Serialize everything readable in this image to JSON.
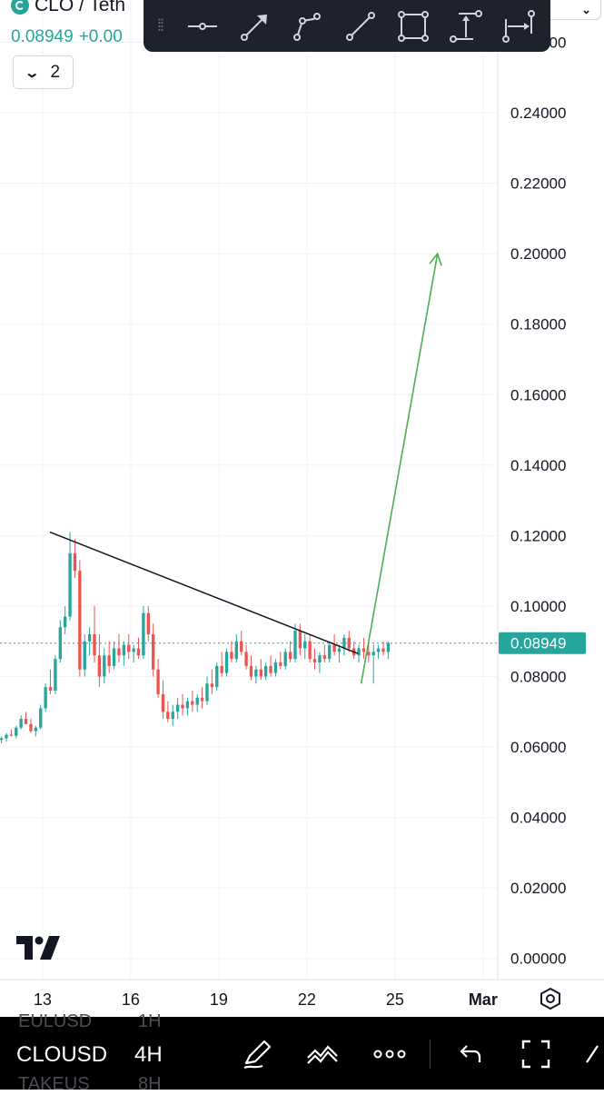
{
  "header": {
    "symbol_title": "CLO / Teth",
    "last_price": "0.08949",
    "change": "+0.00"
  },
  "indicator_toggle": {
    "count": "2"
  },
  "drawing_toolbar": {
    "tools": [
      "horizontal-ray-icon",
      "arrow-icon",
      "path-icon",
      "trend-line-icon",
      "rectangle-icon",
      "price-range-icon",
      "date-range-icon"
    ]
  },
  "bottom_bar": {
    "ghost_above": "EULUSD",
    "ghost_above_interval": "1H",
    "symbol": "CLOUSD",
    "interval": "4H",
    "ghost_below": "TAKEUS",
    "ghost_below_interval": "8H"
  },
  "colors": {
    "up": "#26a69a",
    "down": "#ef5350",
    "trend_line": "#131722",
    "projection_arrow": "#4caf50",
    "grid": "#f0f3fa",
    "toolbar_bg": "#1e222d"
  },
  "chart_data": {
    "type": "candlestick",
    "symbol": "CLO / Teth",
    "y_axis": {
      "ticks": [
        "0.26000",
        "0.24000",
        "0.22000",
        "0.20000",
        "0.18000",
        "0.16000",
        "0.14000",
        "0.12000",
        "0.10000",
        "0.08000",
        "0.06000",
        "0.04000",
        "0.02000",
        "0.00000"
      ],
      "range": [
        -0.006,
        0.272
      ]
    },
    "x_axis": {
      "ticks": [
        "13",
        "16",
        "19",
        "22",
        "25",
        "Mar"
      ],
      "tick_days": [
        13,
        16,
        19,
        22,
        25,
        28
      ],
      "range": [
        11.55,
        28.5
      ]
    },
    "current_price": 0.08949,
    "current_price_label": "0.08949",
    "candles_start_day": 11.6,
    "candle_step_days": 0.1667,
    "candles": [
      [
        0.062,
        0.063,
        0.061,
        0.0625
      ],
      [
        0.0625,
        0.064,
        0.0615,
        0.0635
      ],
      [
        0.0635,
        0.065,
        0.063,
        0.0632
      ],
      [
        0.0632,
        0.066,
        0.0625,
        0.0655
      ],
      [
        0.0655,
        0.069,
        0.065,
        0.068
      ],
      [
        0.068,
        0.07,
        0.0665,
        0.0665
      ],
      [
        0.0665,
        0.068,
        0.064,
        0.0645
      ],
      [
        0.0645,
        0.066,
        0.063,
        0.0655
      ],
      [
        0.0655,
        0.072,
        0.065,
        0.071
      ],
      [
        0.071,
        0.078,
        0.07,
        0.077
      ],
      [
        0.077,
        0.082,
        0.075,
        0.076
      ],
      [
        0.076,
        0.086,
        0.075,
        0.085
      ],
      [
        0.085,
        0.096,
        0.084,
        0.094
      ],
      [
        0.094,
        0.1,
        0.092,
        0.097
      ],
      [
        0.097,
        0.121,
        0.096,
        0.115
      ],
      [
        0.115,
        0.119,
        0.108,
        0.11
      ],
      [
        0.11,
        0.113,
        0.08,
        0.082
      ],
      [
        0.082,
        0.092,
        0.08,
        0.09
      ],
      [
        0.09,
        0.094,
        0.086,
        0.092
      ],
      [
        0.092,
        0.1,
        0.084,
        0.086
      ],
      [
        0.086,
        0.092,
        0.077,
        0.08
      ],
      [
        0.08,
        0.088,
        0.078,
        0.086
      ],
      [
        0.086,
        0.09,
        0.081,
        0.083
      ],
      [
        0.083,
        0.09,
        0.082,
        0.088
      ],
      [
        0.088,
        0.092,
        0.084,
        0.086
      ],
      [
        0.086,
        0.09,
        0.083,
        0.089
      ],
      [
        0.089,
        0.092,
        0.085,
        0.087
      ],
      [
        0.087,
        0.089,
        0.084,
        0.088
      ],
      [
        0.088,
        0.091,
        0.085,
        0.086
      ],
      [
        0.086,
        0.1,
        0.085,
        0.098
      ],
      [
        0.098,
        0.1,
        0.09,
        0.092
      ],
      [
        0.092,
        0.095,
        0.08,
        0.082
      ],
      [
        0.082,
        0.085,
        0.074,
        0.075
      ],
      [
        0.075,
        0.079,
        0.068,
        0.07
      ],
      [
        0.07,
        0.073,
        0.067,
        0.068
      ],
      [
        0.068,
        0.072,
        0.066,
        0.07
      ],
      [
        0.07,
        0.074,
        0.068,
        0.072
      ],
      [
        0.072,
        0.075,
        0.069,
        0.071
      ],
      [
        0.071,
        0.074,
        0.069,
        0.073
      ],
      [
        0.073,
        0.076,
        0.07,
        0.072
      ],
      [
        0.072,
        0.075,
        0.07,
        0.074
      ],
      [
        0.074,
        0.077,
        0.071,
        0.073
      ],
      [
        0.073,
        0.08,
        0.072,
        0.078
      ],
      [
        0.078,
        0.082,
        0.075,
        0.077
      ],
      [
        0.077,
        0.084,
        0.076,
        0.083
      ],
      [
        0.083,
        0.087,
        0.08,
        0.081
      ],
      [
        0.081,
        0.088,
        0.08,
        0.087
      ],
      [
        0.087,
        0.09,
        0.084,
        0.085
      ],
      [
        0.085,
        0.092,
        0.084,
        0.09
      ],
      [
        0.09,
        0.093,
        0.086,
        0.087
      ],
      [
        0.087,
        0.089,
        0.082,
        0.083
      ],
      [
        0.083,
        0.086,
        0.079,
        0.08
      ],
      [
        0.08,
        0.083,
        0.078,
        0.082
      ],
      [
        0.082,
        0.085,
        0.079,
        0.08
      ],
      [
        0.08,
        0.084,
        0.079,
        0.083
      ],
      [
        0.083,
        0.086,
        0.08,
        0.081
      ],
      [
        0.081,
        0.085,
        0.08,
        0.084
      ],
      [
        0.084,
        0.087,
        0.082,
        0.083
      ],
      [
        0.083,
        0.088,
        0.082,
        0.087
      ],
      [
        0.087,
        0.09,
        0.084,
        0.085
      ],
      [
        0.085,
        0.095,
        0.084,
        0.093
      ],
      [
        0.093,
        0.095,
        0.086,
        0.088
      ],
      [
        0.088,
        0.092,
        0.085,
        0.09
      ],
      [
        0.09,
        0.092,
        0.084,
        0.085
      ],
      [
        0.085,
        0.088,
        0.082,
        0.084
      ],
      [
        0.084,
        0.087,
        0.081,
        0.086
      ],
      [
        0.086,
        0.089,
        0.084,
        0.085
      ],
      [
        0.085,
        0.09,
        0.084,
        0.089
      ],
      [
        0.089,
        0.092,
        0.086,
        0.087
      ],
      [
        0.087,
        0.089,
        0.084,
        0.088
      ],
      [
        0.088,
        0.092,
        0.086,
        0.091
      ],
      [
        0.091,
        0.093,
        0.087,
        0.088
      ],
      [
        0.088,
        0.09,
        0.085,
        0.086
      ],
      [
        0.086,
        0.089,
        0.084,
        0.088
      ],
      [
        0.088,
        0.091,
        0.085,
        0.087
      ],
      [
        0.087,
        0.089,
        0.084,
        0.086
      ],
      [
        0.086,
        0.089,
        0.078,
        0.087
      ],
      [
        0.087,
        0.089,
        0.085,
        0.088
      ],
      [
        0.088,
        0.09,
        0.086,
        0.087
      ],
      [
        0.087,
        0.09,
        0.085,
        0.0895
      ]
    ],
    "trend_line": {
      "from": [
        13.25,
        0.121
      ],
      "to": [
        23.75,
        0.0865
      ]
    },
    "projection_arrow": {
      "from": [
        23.85,
        0.078
      ],
      "to": [
        26.45,
        0.2
      ]
    }
  }
}
